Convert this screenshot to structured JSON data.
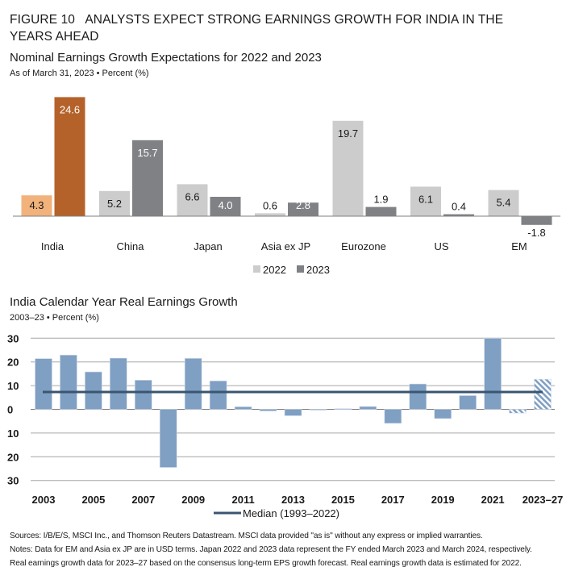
{
  "figure": {
    "title_line1": "FIGURE 10   ANALYSTS EXPECT STRONG EARNINGS GROWTH FOR INDIA IN THE",
    "title_line2": "YEARS AHEAD"
  },
  "colors": {
    "india_2022": "#f2b27c",
    "india_2023": "#b5622a",
    "series_2022": "#cccccc",
    "series_2023": "#7f8184",
    "real_bar": "#7f9fc3",
    "median_line": "#3b5570",
    "grid": "#a6a6a6",
    "axis": "#7f7f7f"
  },
  "chart_data": [
    {
      "type": "bar",
      "title": "Nominal Earnings Growth Expectations for 2022 and 2023",
      "subtitle": "As of March 31, 2023 • Percent (%)",
      "xlabel": "",
      "ylabel": "",
      "categories": [
        "India",
        "China",
        "Japan",
        "Asia ex JP",
        "Eurozone",
        "US",
        "EM"
      ],
      "series": [
        {
          "name": "2022",
          "values": [
            4.3,
            5.2,
            6.6,
            0.6,
            19.7,
            6.1,
            5.4
          ]
        },
        {
          "name": "2023",
          "values": [
            24.6,
            15.7,
            4.0,
            2.8,
            1.9,
            0.4,
            -1.8
          ]
        }
      ],
      "data_labels": [
        [
          "4.3",
          "5.2",
          "6.6",
          "0.6",
          "19.7",
          "6.1",
          "5.4"
        ],
        [
          "24.6",
          "15.7",
          "4.0",
          "2.8",
          "1.9",
          "0.4",
          "-1.8"
        ]
      ],
      "legend": [
        "2022",
        "2023"
      ],
      "legend_position": "bottom-center",
      "grid": false,
      "ylim": [
        -2,
        25
      ]
    },
    {
      "type": "bar",
      "title": "India Calendar Year Real Earnings Growth",
      "subtitle": "2003–23 • Percent (%)",
      "xlabel": "",
      "ylabel": "",
      "categories": [
        "2003",
        "2004",
        "2005",
        "2006",
        "2007",
        "2008",
        "2009",
        "2010",
        "2011",
        "2012",
        "2013",
        "2014",
        "2015",
        "2016",
        "2017",
        "2018",
        "2019",
        "2020",
        "2021",
        "2022",
        "2023–27"
      ],
      "x_tick_labels": [
        "2003",
        "2005",
        "2007",
        "2009",
        "2011",
        "2013",
        "2015",
        "2017",
        "2019",
        "2021",
        "2023–27"
      ],
      "values": [
        21.4,
        22.9,
        15.8,
        21.6,
        12.3,
        -24.5,
        21.5,
        12.0,
        1.1,
        -0.7,
        -2.7,
        -0.3,
        0.3,
        1.2,
        -5.9,
        10.7,
        -3.9,
        5.8,
        30.0,
        -1.6,
        12.7
      ],
      "estimated": [
        false,
        false,
        false,
        false,
        false,
        false,
        false,
        false,
        false,
        false,
        false,
        false,
        false,
        false,
        false,
        false,
        false,
        false,
        false,
        true,
        true
      ],
      "median": {
        "name": "Median (1993–2022)",
        "value": 7.3
      },
      "y_ticks": [
        30,
        20,
        10,
        0,
        -10,
        -20,
        -30
      ],
      "y_tick_labels": [
        "30",
        "20",
        "10",
        "0",
        "10",
        "20",
        "30"
      ],
      "ylim": [
        -30,
        30
      ],
      "grid": true,
      "legend_position": "bottom-center"
    }
  ],
  "footer": {
    "sources": "Sources: I/B/E/S, MSCI Inc., and Thomson Reuters Datastream. MSCI data provided \"as is\" without any express or implied warranties.",
    "notes_line1": "Notes: Data for EM and Asia ex JP are in USD terms. Japan 2022 and 2023 data represent the FY ended March 2023 and March 2024, respectively.",
    "notes_line2": "Real earnings growth data for 2023–27 based on the consensus long-term EPS growth forecast. Real earnings growth data is estimated for 2022."
  }
}
